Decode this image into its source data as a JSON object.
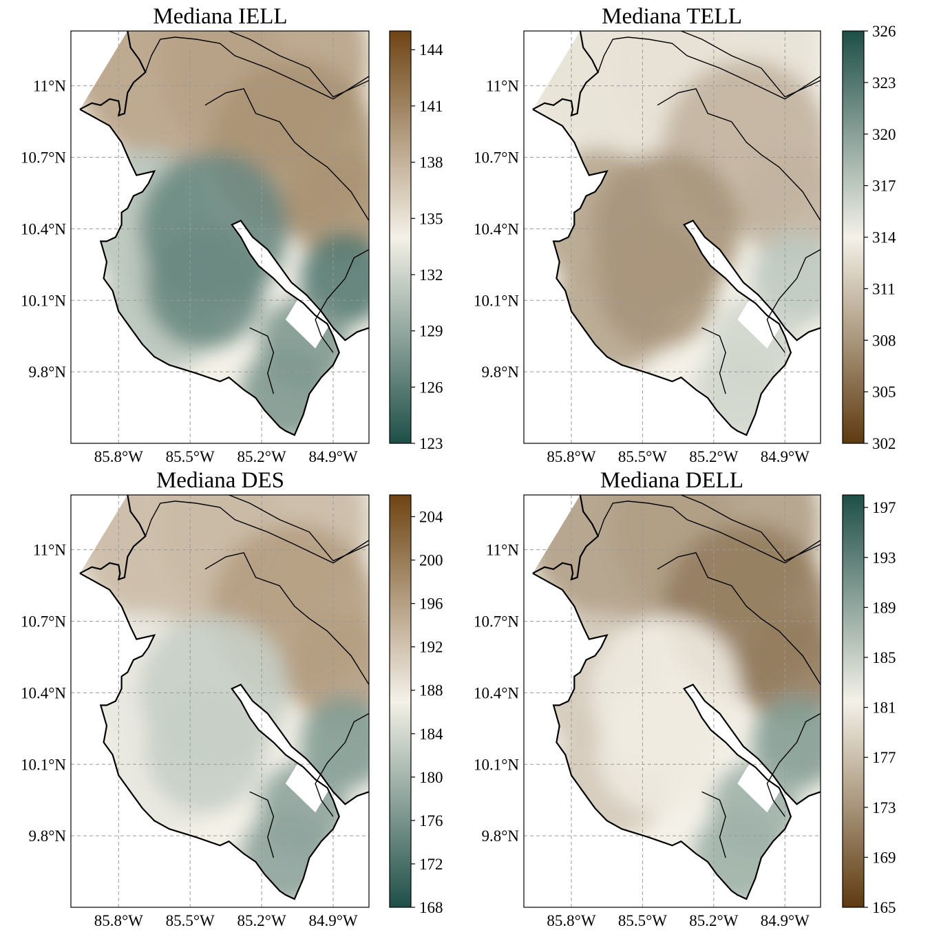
{
  "chart_data": [
    {
      "type": "heatmap",
      "title": "Mediana IELL",
      "xlabel": "",
      "ylabel": "",
      "x_ticks": [
        "85.8°W",
        "85.5°W",
        "85.2°W",
        "84.9°W"
      ],
      "x_tick_values": [
        -85.8,
        -85.5,
        -85.2,
        -84.9
      ],
      "y_ticks": [
        "11°N",
        "10.7°N",
        "10.4°N",
        "10.1°N",
        "9.8°N"
      ],
      "y_tick_values": [
        11.0,
        10.7,
        10.4,
        10.1,
        9.8
      ],
      "xlim": [
        -86.0,
        -84.75
      ],
      "ylim": [
        9.5,
        11.23
      ],
      "colorbar": {
        "ticks": [
          "144",
          "141",
          "138",
          "135",
          "132",
          "129",
          "126",
          "123"
        ],
        "tick_values": [
          144,
          141,
          138,
          135,
          132,
          129,
          126,
          123
        ],
        "range": [
          123,
          145
        ],
        "low_color": "#1d4f47",
        "mid_color": "#f4f1e8",
        "high_color": "#6f4413"
      },
      "values": {
        "north_strip": 139,
        "northeast_interior": 140,
        "west_coast": 131,
        "center": 127,
        "east": 126,
        "southeast": 128
      }
    },
    {
      "type": "heatmap",
      "title": "Mediana TELL",
      "xlabel": "",
      "ylabel": "",
      "x_ticks": [
        "85.8°W",
        "85.5°W",
        "85.2°W",
        "84.9°W"
      ],
      "x_tick_values": [
        -85.8,
        -85.5,
        -85.2,
        -84.9
      ],
      "y_ticks": [
        "11°N",
        "10.7°N",
        "10.4°N",
        "10.1°N",
        "9.8°N"
      ],
      "y_tick_values": [
        11.0,
        10.7,
        10.4,
        10.1,
        9.8
      ],
      "xlim": [
        -86.0,
        -84.75
      ],
      "ylim": [
        9.5,
        11.23
      ],
      "colorbar": {
        "ticks": [
          "326",
          "323",
          "320",
          "317",
          "314",
          "311",
          "308",
          "305",
          "302"
        ],
        "tick_values": [
          326,
          323,
          320,
          317,
          314,
          311,
          308,
          305,
          302
        ],
        "range": [
          302,
          326
        ],
        "low_color": "#5e3a10",
        "mid_color": "#f4f1e8",
        "high_color": "#1d4f47"
      },
      "values": {
        "north_strip": 313,
        "northeast_interior": 310,
        "west_coast": 309,
        "center": 308,
        "east": 317,
        "southeast": 316
      }
    },
    {
      "type": "heatmap",
      "title": "Mediana DES",
      "xlabel": "",
      "ylabel": "",
      "x_ticks": [
        "85.8°W",
        "85.5°W",
        "85.2°W",
        "84.9°W"
      ],
      "x_tick_values": [
        -85.8,
        -85.5,
        -85.2,
        -84.9
      ],
      "y_ticks": [
        "11°N",
        "10.7°N",
        "10.4°N",
        "10.1°N",
        "9.8°N"
      ],
      "y_tick_values": [
        11.0,
        10.7,
        10.4,
        10.1,
        9.8
      ],
      "xlim": [
        -86.0,
        -84.75
      ],
      "ylim": [
        9.5,
        11.23
      ],
      "colorbar": {
        "ticks": [
          "204",
          "200",
          "196",
          "192",
          "188",
          "184",
          "180",
          "176",
          "172",
          "168"
        ],
        "tick_values": [
          204,
          200,
          196,
          192,
          188,
          184,
          180,
          176,
          172,
          168
        ],
        "range": [
          168,
          206
        ],
        "low_color": "#1d4f47",
        "mid_color": "#f4f1e8",
        "high_color": "#6f4413"
      },
      "values": {
        "north_strip": 193,
        "northeast_interior": 196,
        "west_coast": 186,
        "center": 183,
        "east": 177,
        "southeast": 178
      }
    },
    {
      "type": "heatmap",
      "title": "Mediana DELL",
      "xlabel": "",
      "ylabel": "",
      "x_ticks": [
        "85.8°W",
        "85.5°W",
        "85.2°W",
        "84.9°W"
      ],
      "x_tick_values": [
        -85.8,
        -85.5,
        -85.2,
        -84.9
      ],
      "y_ticks": [
        "11°N",
        "10.7°N",
        "10.4°N",
        "10.1°N",
        "9.8°N"
      ],
      "y_tick_values": [
        11.0,
        10.7,
        10.4,
        10.1,
        9.8
      ],
      "xlim": [
        -86.0,
        -84.75
      ],
      "ylim": [
        9.5,
        11.23
      ],
      "colorbar": {
        "ticks": [
          "197",
          "193",
          "189",
          "185",
          "181",
          "177",
          "173",
          "169",
          "165"
        ],
        "tick_values": [
          197,
          193,
          189,
          185,
          181,
          177,
          173,
          169,
          165
        ],
        "range": [
          165,
          198
        ],
        "low_color": "#5e3a10",
        "mid_color": "#f4f1e8",
        "high_color": "#1d4f47"
      },
      "values": {
        "north_strip": 174,
        "northeast_interior": 171,
        "west_coast": 178,
        "center": 181,
        "east": 190,
        "southeast": 188
      }
    }
  ]
}
